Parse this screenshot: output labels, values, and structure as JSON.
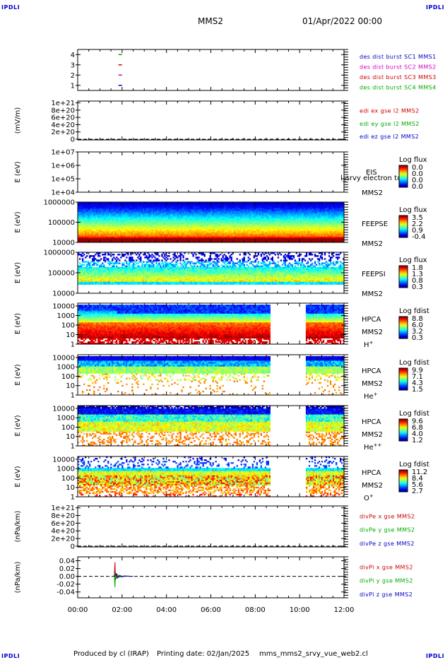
{
  "corners": {
    "tl": "IPDLI",
    "tr": "IPDLI",
    "bl": "IPDLI",
    "br": "IPDLI"
  },
  "header": {
    "spacecraft": "MMS2",
    "date": "01/Apr/2022 00:00"
  },
  "footer": {
    "produced": "Produced by cl (IRAP)",
    "printing": "Printing date: 02/Jan/2025",
    "file": "mms_mms2_srvy_vue_web2.cl"
  },
  "chart_data": {
    "type": "multi-panel time series",
    "x": {
      "ticks": [
        "00:00",
        "02:00",
        "04:00",
        "06:00",
        "08:00",
        "10:00",
        "12:00"
      ],
      "range_hours": [
        0,
        12
      ]
    },
    "panels": [
      {
        "id": "burst",
        "kind": "markers",
        "yticks": [
          "4",
          "3",
          "2",
          "1"
        ],
        "tick_values": [
          4,
          3,
          2,
          1
        ],
        "ylim": [
          0.5,
          4.5
        ],
        "markers": [
          {
            "value": 4,
            "color": "#00aa00"
          },
          {
            "value": 3,
            "color": "#cc0000"
          },
          {
            "value": 2,
            "color": "#cc00cc"
          },
          {
            "value": 1,
            "color": "#0000cc"
          }
        ],
        "marker_time_hours": 1.9,
        "right_labels": [
          {
            "text": "des dist burst SC1 MMS1",
            "color": "#0000cc"
          },
          {
            "text": "des dist burst SC2 MMS2",
            "color": "#cc00cc"
          },
          {
            "text": "des dist burst SC3 MMS3",
            "color": "#cc0000"
          },
          {
            "text": "des dist burst SC4 MMS4",
            "color": "#00aa00"
          }
        ]
      },
      {
        "id": "edi",
        "kind": "empty",
        "ylabel": "(mV/m)",
        "yticks": [
          "1e+21",
          "8e+20",
          "6e+20",
          "4e+20",
          "2e+20",
          "0"
        ],
        "tick_values": [
          1,
          0.8,
          0.6,
          0.4,
          0.2,
          0
        ],
        "ylim": [
          -0.02,
          1.05
        ],
        "zero_line": true,
        "right_labels": [
          {
            "text": "edi ex gse l2 MMS2",
            "color": "#cc0000"
          },
          {
            "text": "edi ey gse l2 MMS2",
            "color": "#00aa00"
          },
          {
            "text": "edi ez gse l2 MMS2",
            "color": "#0000cc"
          }
        ]
      },
      {
        "id": "eis",
        "kind": "empty",
        "ylabel": "E (eV)",
        "yticks": [
          "1e+07",
          "1e+06",
          "1e+05",
          "1e+04"
        ],
        "tick_values": [
          7,
          6,
          5,
          4
        ],
        "ylim": [
          4,
          7
        ],
        "instrument": [
          "EIS",
          "MMS2"
        ],
        "overlay_text": "l_srvy electron to",
        "colorbar": {
          "title": "Log flux",
          "ticks": [
            "0.0",
            "0.0",
            "0.0",
            "0.0"
          ]
        }
      },
      {
        "id": "feepse",
        "kind": "spectrogram",
        "variant": "feepse",
        "ylabel": "E (eV)",
        "yticks": [
          "1000000",
          "100000",
          "10000"
        ],
        "tick_values": [
          6,
          5,
          4
        ],
        "ylim": [
          4,
          6
        ],
        "instrument": [
          "FEEPSE",
          "MMS2"
        ],
        "colorbar": {
          "title": "Log flux",
          "ticks": [
            "3.5",
            "2.2",
            "0.9",
            "-0.4"
          ]
        }
      },
      {
        "id": "feepsi",
        "kind": "spectrogram",
        "variant": "feepsi",
        "ylabel": "E (eV)",
        "yticks": [
          "1000000",
          "100000",
          "10000"
        ],
        "tick_values": [
          6,
          5,
          4
        ],
        "ylim": [
          4,
          6
        ],
        "instrument": [
          "FEEPSI",
          "MMS2"
        ],
        "colorbar": {
          "title": "Log flux",
          "ticks": [
            "1.8",
            "1.3",
            "0.8",
            "0.3"
          ]
        }
      },
      {
        "id": "hpca_h",
        "kind": "spectrogram",
        "variant": "h",
        "ylabel": "E (eV)",
        "yticks": [
          "10000",
          "1000",
          "100",
          "10",
          "1"
        ],
        "tick_values": [
          4,
          3,
          2,
          1,
          0
        ],
        "ylim": [
          0,
          4.3
        ],
        "instrument": [
          "HPCA",
          "MMS2",
          "H+"
        ],
        "gap_hours": [
          8.7,
          10.3
        ],
        "colorbar": {
          "title": "Log fdist",
          "ticks": [
            "8.8",
            "6.0",
            "3.2",
            "0.3"
          ]
        }
      },
      {
        "id": "hpca_he",
        "kind": "spectrogram",
        "variant": "he",
        "ylabel": "E (eV)",
        "yticks": [
          "10000",
          "1000",
          "100",
          "10",
          "1"
        ],
        "tick_values": [
          4,
          3,
          2,
          1,
          0
        ],
        "ylim": [
          0,
          4.3
        ],
        "instrument": [
          "HPCA",
          "MMS2",
          "He+"
        ],
        "gap_hours": [
          8.7,
          10.3
        ],
        "colorbar": {
          "title": "Log fdist",
          "ticks": [
            "9.9",
            "7.1",
            "4.3",
            "1.5"
          ]
        }
      },
      {
        "id": "hpca_he2",
        "kind": "spectrogram",
        "variant": "he2",
        "ylabel": "E (eV)",
        "yticks": [
          "10000",
          "1000",
          "100",
          "10",
          "1"
        ],
        "tick_values": [
          4,
          3,
          2,
          1,
          0
        ],
        "ylim": [
          0,
          4.3
        ],
        "instrument": [
          "HPCA",
          "MMS2",
          "He++"
        ],
        "gap_hours": [
          8.7,
          10.3
        ],
        "colorbar": {
          "title": "Log fdist",
          "ticks": [
            "9.6",
            "6.8",
            "4.0",
            "1.2"
          ]
        }
      },
      {
        "id": "hpca_o",
        "kind": "spectrogram",
        "variant": "o",
        "ylabel": "E (eV)",
        "yticks": [
          "10000",
          "1000",
          "100",
          "10",
          "1"
        ],
        "tick_values": [
          4,
          3,
          2,
          1,
          0
        ],
        "ylim": [
          0,
          4.3
        ],
        "instrument": [
          "HPCA",
          "MMS2",
          "O+"
        ],
        "gap_hours": [
          8.7,
          10.3
        ],
        "colorbar": {
          "title": "Log fdist",
          "ticks": [
            "11.2",
            "8.4",
            "5.6",
            "2.7"
          ]
        }
      },
      {
        "id": "divpe",
        "kind": "empty",
        "ylabel": "(nPa/km)",
        "yticks": [
          "1e+21",
          "8e+20",
          "6e+20",
          "4e+20",
          "2e+20",
          "0"
        ],
        "tick_values": [
          1,
          0.8,
          0.6,
          0.4,
          0.2,
          0
        ],
        "ylim": [
          -0.02,
          1.05
        ],
        "zero_line": true,
        "right_labels": [
          {
            "text": "divPe x gse MMS2",
            "color": "#cc0000"
          },
          {
            "text": "divPe y gse MMS2",
            "color": "#00aa00"
          },
          {
            "text": "divPe z gse MMS2",
            "color": "#0000cc"
          }
        ]
      },
      {
        "id": "divpi",
        "kind": "line",
        "ylabel": "(nPa/km)",
        "yticks": [
          "0.04",
          "0.02",
          "0.00",
          "-0.02",
          "-0.04"
        ],
        "tick_values": [
          0.04,
          0.02,
          0,
          -0.02,
          -0.04
        ],
        "ylim": [
          -0.055,
          0.05
        ],
        "zero_line": true,
        "series": [
          {
            "name": "divPi x gse MMS2",
            "color": "#cc0000",
            "points": [
              [
                1.65,
                0
              ],
              [
                1.68,
                0.036
              ],
              [
                1.7,
                -0.01
              ],
              [
                1.75,
                0.008
              ],
              [
                1.8,
                -0.004
              ],
              [
                1.9,
                0.003
              ],
              [
                2.0,
                -0.002
              ],
              [
                2.1,
                0.001
              ],
              [
                2.4,
                0
              ]
            ]
          },
          {
            "name": "divPi y gse MMS2",
            "color": "#00aa00",
            "points": [
              [
                1.65,
                0
              ],
              [
                1.68,
                -0.028
              ],
              [
                1.7,
                0.012
              ],
              [
                1.75,
                -0.006
              ],
              [
                1.8,
                0.004
              ],
              [
                1.9,
                -0.002
              ],
              [
                2.0,
                0.001
              ],
              [
                2.2,
                0
              ]
            ]
          },
          {
            "name": "divPi z gse MMS2",
            "color": "#0000cc",
            "points": [
              [
                1.65,
                0
              ],
              [
                1.72,
                0.006
              ],
              [
                1.8,
                -0.004
              ],
              [
                1.9,
                0.002
              ],
              [
                2.0,
                -0.001
              ],
              [
                2.1,
                0.001
              ],
              [
                2.5,
                0
              ]
            ]
          }
        ],
        "right_labels": [
          {
            "text": "divPi x gse MMS2",
            "color": "#cc0000"
          },
          {
            "text": "divPi y gse MMS2",
            "color": "#00aa00"
          },
          {
            "text": "divPi z gse MMS2",
            "color": "#0000cc"
          }
        ]
      }
    ]
  }
}
